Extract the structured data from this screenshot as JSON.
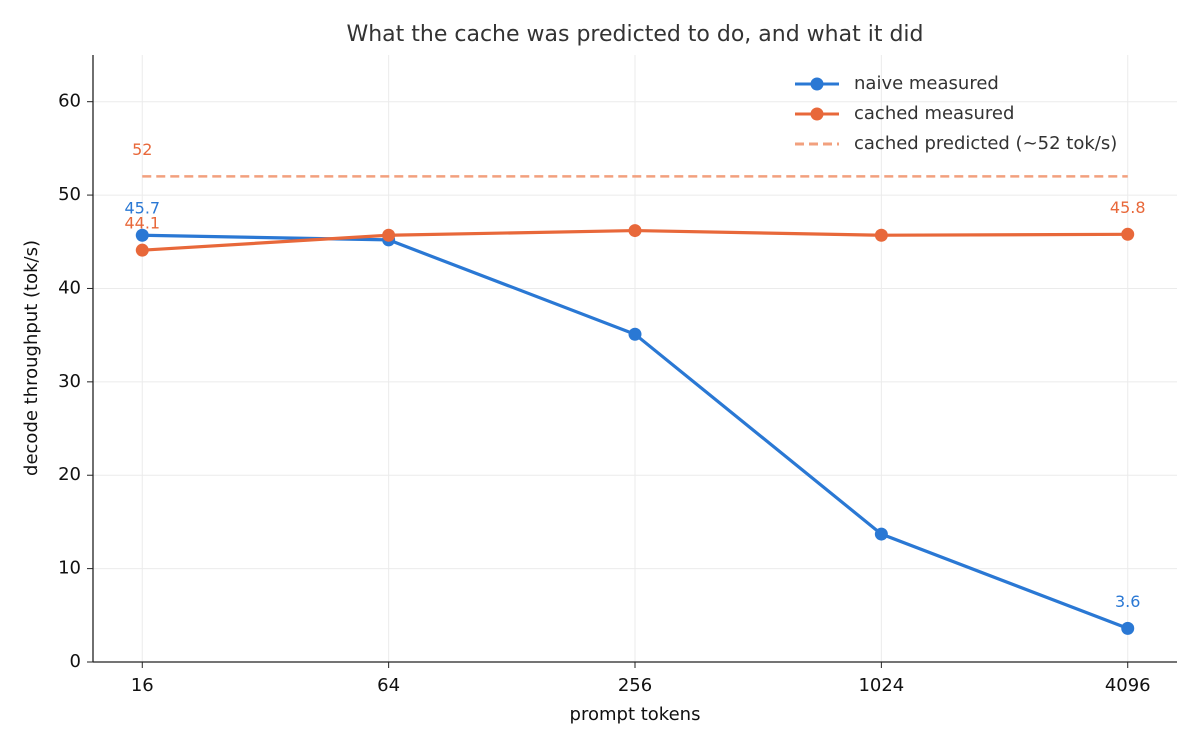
{
  "chart_data": {
    "type": "line",
    "title": "What the cache was predicted to do, and what it did",
    "x_label": "prompt tokens",
    "y_label": "decode throughput (tok/s)",
    "categories": [
      "16",
      "64",
      "256",
      "1024",
      "4096"
    ],
    "series": [
      {
        "name": "naive measured",
        "color": "#2a78d4",
        "style": "solid",
        "markers": true,
        "values": [
          45.7,
          45.2,
          35.1,
          13.7,
          3.6
        ],
        "value_labels": [
          "45.7",
          null,
          null,
          null,
          "3.6"
        ]
      },
      {
        "name": "cached measured",
        "color": "#e8683a",
        "style": "solid",
        "markers": true,
        "values": [
          44.1,
          45.7,
          46.2,
          45.7,
          45.8
        ],
        "value_labels": [
          "44.1",
          null,
          null,
          null,
          "45.8"
        ]
      },
      {
        "name": "cached predicted (~52 tok/s)",
        "color": "#f2a07e",
        "style": "dashed",
        "markers": false,
        "values": [
          52,
          52,
          52,
          52,
          52
        ],
        "value_labels": [
          "52",
          null,
          null,
          null,
          null
        ]
      }
    ],
    "ylim": [
      0,
      65
    ],
    "yticks": [
      0,
      10,
      20,
      30,
      40,
      50,
      60
    ],
    "grid": true,
    "legend": "upper right"
  }
}
